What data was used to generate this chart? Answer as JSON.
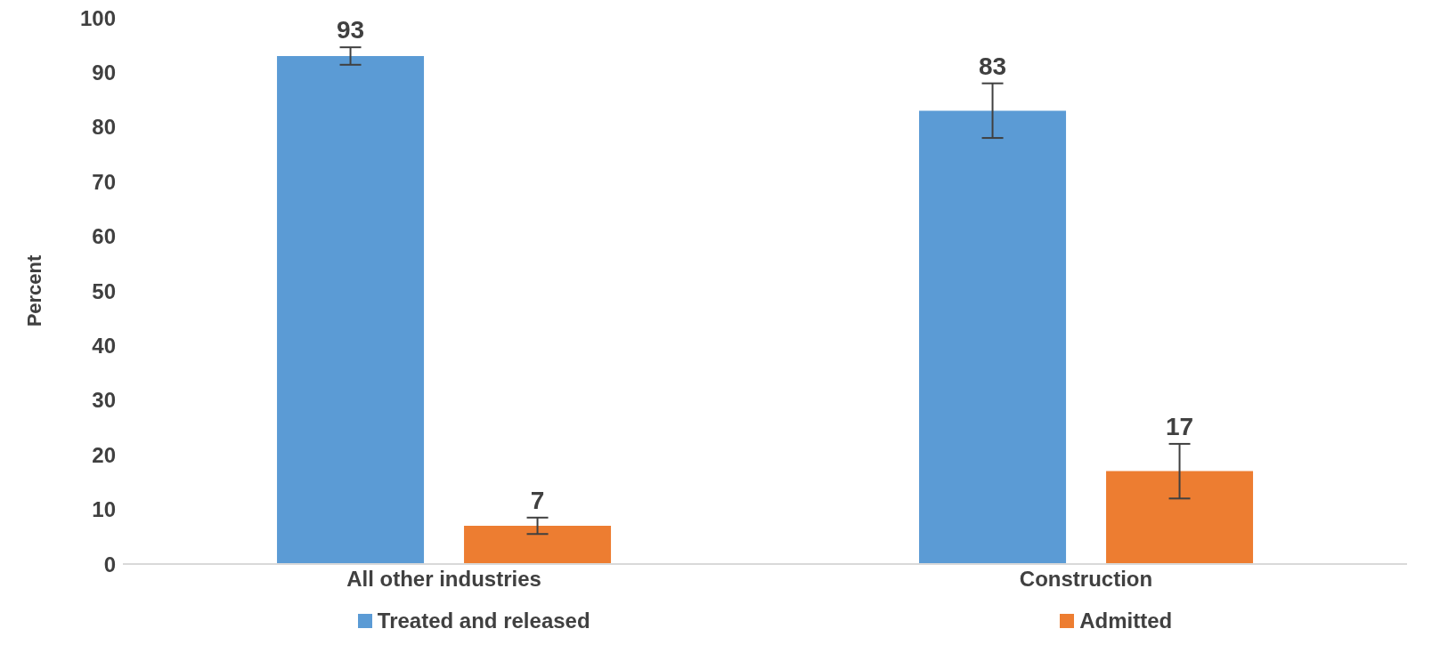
{
  "chart_data": {
    "type": "bar",
    "ylabel": "Percent",
    "categories": [
      "All other industries",
      "Construction"
    ],
    "series": [
      {
        "name": "Treated and released",
        "color": "#5b9bd5",
        "values": [
          93,
          83
        ],
        "errors": [
          1.6,
          5
        ]
      },
      {
        "name": "Admitted",
        "color": "#ed7d31",
        "values": [
          7,
          17
        ],
        "errors": [
          1.5,
          5
        ]
      }
    ],
    "ylim": [
      0,
      100
    ],
    "yticks": [
      0,
      10,
      20,
      30,
      40,
      50,
      60,
      70,
      80,
      90,
      100
    ],
    "legend": "bottom",
    "data_labels": true
  }
}
